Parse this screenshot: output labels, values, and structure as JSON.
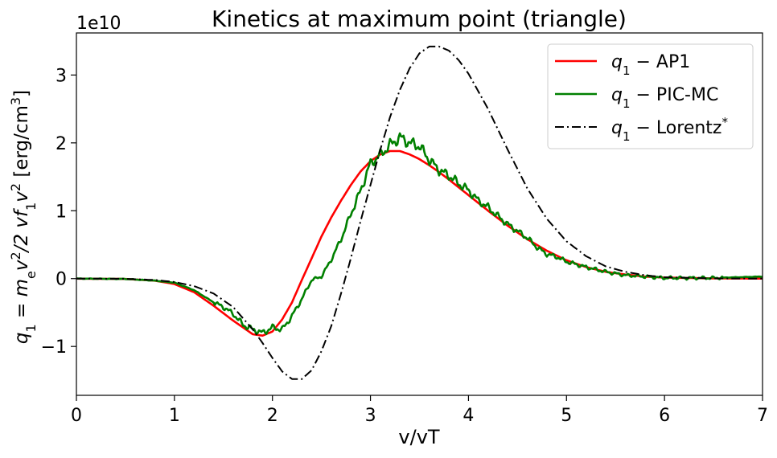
{
  "chart_data": {
    "type": "line",
    "title": "Kinetics at maximum point (triangle)",
    "xlabel": "v/vT",
    "ylabel_parts": [
      "q",
      "1",
      " = m",
      "e",
      "v",
      "2",
      "/2 vf",
      "1",
      "v",
      "2",
      " [erg/cm",
      "3",
      "]"
    ],
    "y_multiplier": "1e10",
    "xlim": [
      0,
      7
    ],
    "ylim": [
      -1.72,
      3.62
    ],
    "x_ticks": [
      0,
      1,
      2,
      3,
      4,
      5,
      6,
      7
    ],
    "x_tick_labels": [
      "0",
      "1",
      "2",
      "3",
      "4",
      "5",
      "6",
      "7"
    ],
    "y_ticks": [
      -1,
      0,
      1,
      2,
      3
    ],
    "y_tick_labels": [
      "−1",
      "0",
      "1",
      "2",
      "3"
    ],
    "grid": false,
    "legend_position": "top-right",
    "series": [
      {
        "name": "q1 − AP1",
        "legend": {
          "q": "q",
          "sub": "1",
          "rest": " − AP1",
          "sup": ""
        },
        "color": "#ff0000",
        "dash": "solid",
        "points": [
          [
            0,
            0
          ],
          [
            0.5,
            -0.005
          ],
          [
            0.8,
            -0.03
          ],
          [
            1.0,
            -0.08
          ],
          [
            1.2,
            -0.2
          ],
          [
            1.4,
            -0.4
          ],
          [
            1.6,
            -0.62
          ],
          [
            1.8,
            -0.82
          ],
          [
            1.9,
            -0.84
          ],
          [
            2.0,
            -0.78
          ],
          [
            2.1,
            -0.6
          ],
          [
            2.2,
            -0.35
          ],
          [
            2.3,
            -0.02
          ],
          [
            2.4,
            0.3
          ],
          [
            2.5,
            0.62
          ],
          [
            2.6,
            0.9
          ],
          [
            2.7,
            1.15
          ],
          [
            2.8,
            1.38
          ],
          [
            2.9,
            1.58
          ],
          [
            3.0,
            1.73
          ],
          [
            3.1,
            1.83
          ],
          [
            3.2,
            1.88
          ],
          [
            3.3,
            1.88
          ],
          [
            3.4,
            1.83
          ],
          [
            3.5,
            1.76
          ],
          [
            3.6,
            1.67
          ],
          [
            3.7,
            1.57
          ],
          [
            3.8,
            1.46
          ],
          [
            4.0,
            1.23
          ],
          [
            4.2,
            1.0
          ],
          [
            4.4,
            0.78
          ],
          [
            4.6,
            0.58
          ],
          [
            4.8,
            0.41
          ],
          [
            5.0,
            0.27
          ],
          [
            5.2,
            0.17
          ],
          [
            5.4,
            0.1
          ],
          [
            5.6,
            0.06
          ],
          [
            5.8,
            0.03
          ],
          [
            6.0,
            0.015
          ],
          [
            6.5,
            0.003
          ],
          [
            7.0,
            0
          ]
        ]
      },
      {
        "name": "q1 − PIC-MC",
        "legend": {
          "q": "q",
          "sub": "1",
          "rest": " − PIC-MC",
          "sup": ""
        },
        "color": "#008000",
        "dash": "solid",
        "noise": true,
        "points": [
          [
            0,
            0
          ],
          [
            0.5,
            -0.005
          ],
          [
            0.8,
            -0.03
          ],
          [
            1.0,
            -0.06
          ],
          [
            1.2,
            -0.17
          ],
          [
            1.4,
            -0.35
          ],
          [
            1.5,
            -0.42
          ],
          [
            1.6,
            -0.52
          ],
          [
            1.7,
            -0.68
          ],
          [
            1.8,
            -0.75
          ],
          [
            1.9,
            -0.8
          ],
          [
            2.0,
            -0.72
          ],
          [
            2.1,
            -0.75
          ],
          [
            2.2,
            -0.55
          ],
          [
            2.3,
            -0.3
          ],
          [
            2.4,
            -0.02
          ],
          [
            2.5,
            0.03
          ],
          [
            2.6,
            0.28
          ],
          [
            2.7,
            0.58
          ],
          [
            2.8,
            0.95
          ],
          [
            2.9,
            1.3
          ],
          [
            3.0,
            1.7
          ],
          [
            3.1,
            1.82
          ],
          [
            3.2,
            1.97
          ],
          [
            3.3,
            2.08
          ],
          [
            3.4,
            2.0
          ],
          [
            3.5,
            1.95
          ],
          [
            3.6,
            1.75
          ],
          [
            3.7,
            1.6
          ],
          [
            3.8,
            1.52
          ],
          [
            3.9,
            1.4
          ],
          [
            4.0,
            1.3
          ],
          [
            4.1,
            1.15
          ],
          [
            4.2,
            1.05
          ],
          [
            4.3,
            0.92
          ],
          [
            4.4,
            0.8
          ],
          [
            4.5,
            0.7
          ],
          [
            4.6,
            0.6
          ],
          [
            4.7,
            0.46
          ],
          [
            4.8,
            0.36
          ],
          [
            4.9,
            0.32
          ],
          [
            5.0,
            0.25
          ],
          [
            5.2,
            0.17
          ],
          [
            5.4,
            0.1
          ],
          [
            5.6,
            0.05
          ],
          [
            5.8,
            0.03
          ],
          [
            6.0,
            0.01
          ],
          [
            6.5,
            0.01
          ],
          [
            7.0,
            0.03
          ]
        ]
      },
      {
        "name": "q1 − Lorentz*",
        "legend": {
          "q": "q",
          "sub": "1",
          "rest": " − Lorentz",
          "sup": "*"
        },
        "color": "#000000",
        "dash": "dashdot",
        "points": [
          [
            0,
            0
          ],
          [
            0.5,
            -0.003
          ],
          [
            0.8,
            -0.02
          ],
          [
            1.0,
            -0.05
          ],
          [
            1.2,
            -0.11
          ],
          [
            1.4,
            -0.22
          ],
          [
            1.6,
            -0.42
          ],
          [
            1.8,
            -0.75
          ],
          [
            1.9,
            -0.95
          ],
          [
            2.0,
            -1.17
          ],
          [
            2.1,
            -1.37
          ],
          [
            2.2,
            -1.48
          ],
          [
            2.3,
            -1.48
          ],
          [
            2.4,
            -1.35
          ],
          [
            2.5,
            -1.07
          ],
          [
            2.6,
            -0.7
          ],
          [
            2.7,
            -0.22
          ],
          [
            2.8,
            0.3
          ],
          [
            2.9,
            0.85
          ],
          [
            3.0,
            1.38
          ],
          [
            3.1,
            1.9
          ],
          [
            3.2,
            2.38
          ],
          [
            3.3,
            2.78
          ],
          [
            3.4,
            3.1
          ],
          [
            3.5,
            3.32
          ],
          [
            3.6,
            3.42
          ],
          [
            3.7,
            3.42
          ],
          [
            3.8,
            3.36
          ],
          [
            3.9,
            3.22
          ],
          [
            4.0,
            3.02
          ],
          [
            4.2,
            2.5
          ],
          [
            4.4,
            1.9
          ],
          [
            4.6,
            1.33
          ],
          [
            4.8,
            0.88
          ],
          [
            5.0,
            0.55
          ],
          [
            5.2,
            0.33
          ],
          [
            5.4,
            0.18
          ],
          [
            5.6,
            0.1
          ],
          [
            5.8,
            0.05
          ],
          [
            6.0,
            0.02
          ],
          [
            6.5,
            0.003
          ],
          [
            7.0,
            0
          ]
        ]
      }
    ]
  }
}
